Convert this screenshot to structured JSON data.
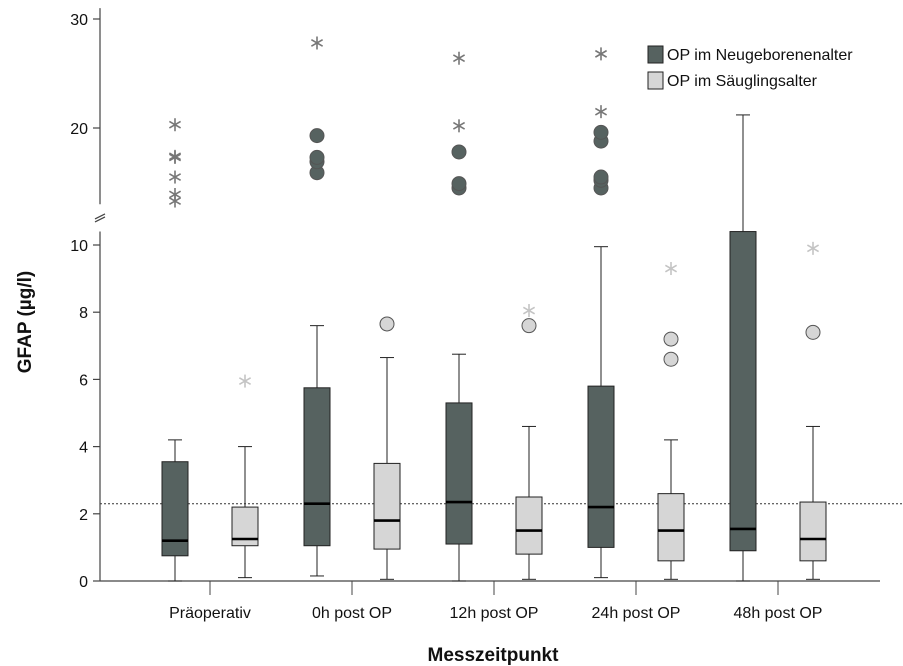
{
  "chart_data": {
    "type": "boxplot",
    "xlabel": "Messzeitpunkt",
    "ylabel": "GFAP (µg/l)",
    "categories": [
      "Präoperativ",
      "0h post OP",
      "12h post OP",
      "24h post OP",
      "48h post OP"
    ],
    "y_axis": {
      "broken": true,
      "lower_segment": [
        0,
        10.4
      ],
      "upper_segment": [
        13,
        31
      ],
      "lower_ticks": [
        "0",
        "2",
        "4",
        "6",
        "8",
        "10"
      ],
      "upper_ticks": [
        "20",
        "30"
      ]
    },
    "reference_line": 2.3,
    "legend_position": "top-right",
    "series": [
      {
        "name": "OP im Neugeborenenalter",
        "color": "#566260",
        "boxes": [
          {
            "whisker_low": 0.0,
            "q1": 0.75,
            "median": 1.2,
            "q3": 3.55,
            "whisker_high": 4.2,
            "outliers": [],
            "extremes": [
              13.3,
              13.9,
              15.5,
              17.3,
              17.4,
              20.3
            ]
          },
          {
            "whisker_low": 0.15,
            "q1": 1.05,
            "median": 2.3,
            "q3": 5.75,
            "whisker_high": 7.6,
            "outliers": [
              15.9,
              16.9,
              17.3,
              19.3
            ],
            "extremes": [
              27.8
            ]
          },
          {
            "whisker_low": 0.0,
            "q1": 1.1,
            "median": 2.35,
            "q3": 5.3,
            "whisker_high": 6.75,
            "outliers": [
              14.5,
              14.9,
              17.8
            ],
            "extremes": [
              20.2,
              26.4
            ]
          },
          {
            "whisker_low": 0.1,
            "q1": 1.0,
            "median": 2.2,
            "q3": 5.8,
            "whisker_high": 9.95,
            "outliers": [
              14.5,
              15.2,
              15.5,
              18.8,
              19.6
            ],
            "extremes": [
              21.5,
              26.8
            ]
          },
          {
            "whisker_low": 0.0,
            "q1": 0.9,
            "median": 1.55,
            "q3": 10.4,
            "whisker_high": 21.2,
            "outliers": [],
            "extremes": []
          }
        ]
      },
      {
        "name": "OP im Säuglingsalter",
        "color": "#d6d6d6",
        "boxes": [
          {
            "whisker_low": 0.1,
            "q1": 1.05,
            "median": 1.25,
            "q3": 2.2,
            "whisker_high": 4.0,
            "outliers": [],
            "extremes": [
              5.95
            ]
          },
          {
            "whisker_low": 0.05,
            "q1": 0.95,
            "median": 1.8,
            "q3": 3.5,
            "whisker_high": 6.65,
            "outliers": [
              7.65
            ],
            "extremes": []
          },
          {
            "whisker_low": 0.05,
            "q1": 0.8,
            "median": 1.5,
            "q3": 2.5,
            "whisker_high": 4.6,
            "outliers": [
              7.6
            ],
            "extremes": [
              8.05
            ]
          },
          {
            "whisker_low": 0.05,
            "q1": 0.6,
            "median": 1.5,
            "q3": 2.6,
            "whisker_high": 4.2,
            "outliers": [
              6.6,
              7.2
            ],
            "extremes": [
              9.3
            ]
          },
          {
            "whisker_low": 0.05,
            "q1": 0.6,
            "median": 1.25,
            "q3": 2.35,
            "whisker_high": 4.6,
            "outliers": [
              7.4
            ],
            "extremes": [
              9.9
            ]
          }
        ]
      }
    ]
  }
}
